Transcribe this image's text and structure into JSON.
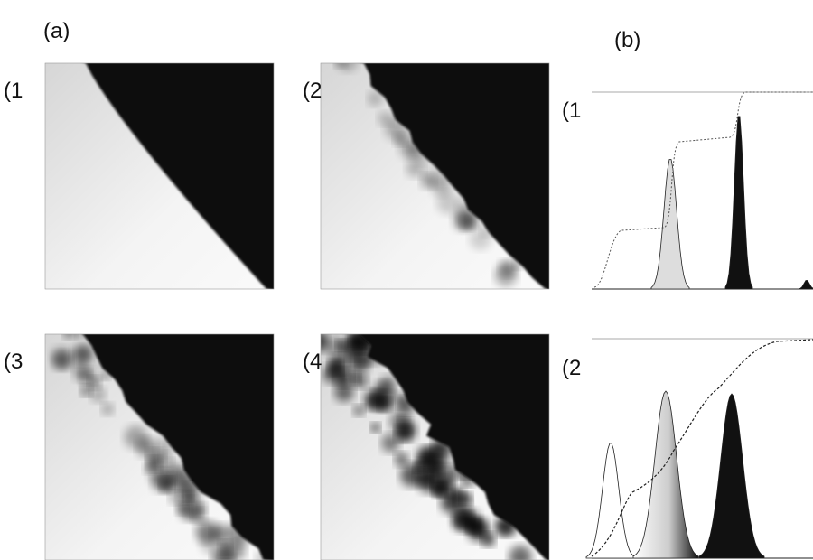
{
  "panel_a": {
    "label": "(a)",
    "images": [
      {
        "label": "(1"
      },
      {
        "label": "(2"
      },
      {
        "label": "(3"
      },
      {
        "label": "(4"
      }
    ]
  },
  "panel_b": {
    "label": "(b)",
    "plots": [
      {
        "label": "(1"
      },
      {
        "label": "(2"
      }
    ]
  }
}
